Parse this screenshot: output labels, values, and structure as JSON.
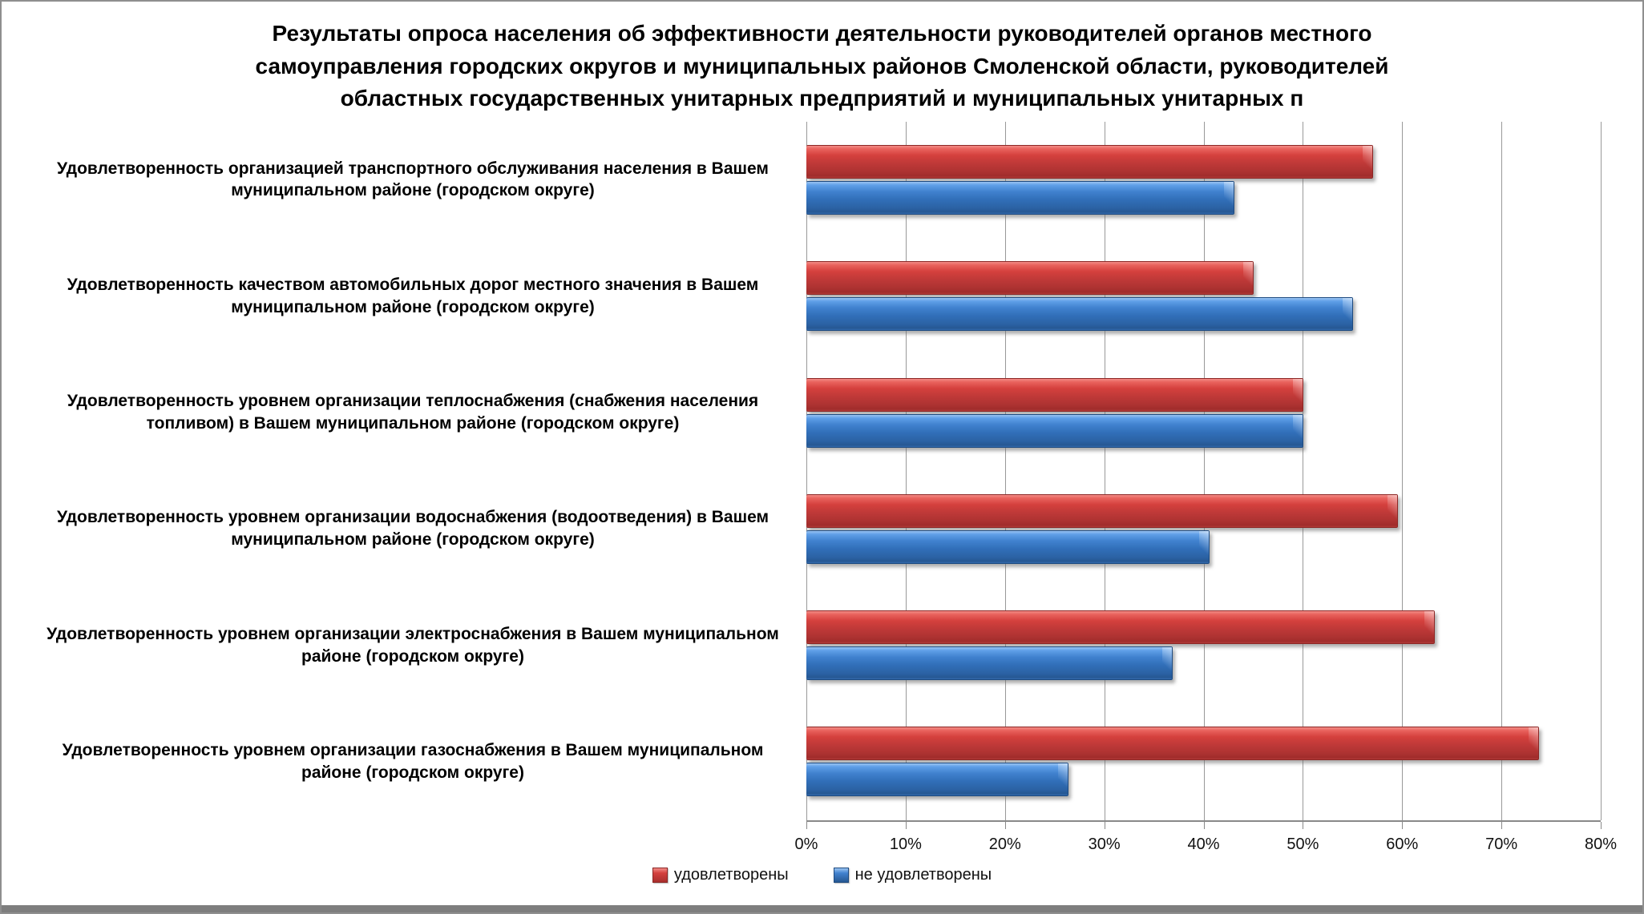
{
  "title": "Результаты опроса населения об эффективности деятельности руководителей органов местного самоуправления городских округов и муниципальных районов Смоленской области, руководителей областных государственных унитарных предприятий и муниципальных унитарных п",
  "chart_data": {
    "type": "bar",
    "orientation": "horizontal",
    "categories": [
      "Удовлетворенность организацией транспортного обслуживания населения в Вашем муниципальном районе (городском округе)",
      "Удовлетворенность качеством автомобильных дорог местного значения в Вашем муниципальном районе (городском округе)",
      "Удовлетворенность уровнем организации теплоснабжения (снабжения населения топливом) в Вашем муниципальном районе (городском округе)",
      "Удовлетворенность уровнем организации водоснабжения (водоотведения) в Вашем муниципальном районе (городском округе)",
      "Удовлетворенность уровнем организации электроснабжения в Вашем муниципальном районе (городском округе)",
      "Удовлетворенность уровнем организации газоснабжения в Вашем муниципальном районе (городском округе)"
    ],
    "series": [
      {
        "name": "удовлетворены",
        "color": "#C23D3B",
        "values": [
          57,
          45,
          50,
          59.5,
          63.2,
          73.7
        ]
      },
      {
        "name": "не удовлетворены",
        "color": "#3470BA",
        "values": [
          43,
          55,
          50,
          40.5,
          36.8,
          26.3
        ]
      }
    ],
    "x_ticks": [
      "0%",
      "10%",
      "20%",
      "30%",
      "40%",
      "50%",
      "60%",
      "70%",
      "80%"
    ],
    "xlim": [
      0,
      80
    ],
    "grid": true,
    "legend_position": "bottom"
  }
}
